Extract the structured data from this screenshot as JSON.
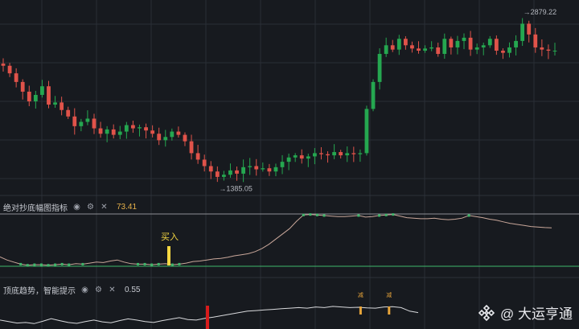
{
  "chart_data": [
    {
      "type": "candlestick",
      "title": "",
      "ylim": [
        1300,
        3000
      ],
      "grid": true,
      "annotations": [
        {
          "label": "→2879.22",
          "value": 2879.22,
          "kind": "high"
        },
        {
          "label": "→1385.05",
          "value": 1385.05,
          "kind": "low"
        }
      ],
      "close_path": [
        2450,
        2380,
        2300,
        2210,
        2120,
        2180,
        2260,
        2090,
        2110,
        2040,
        1980,
        1890,
        1930,
        1960,
        1870,
        1820,
        1860,
        1810,
        1840,
        1900,
        1870,
        1880,
        1850,
        1820,
        1760,
        1790,
        1840,
        1810,
        1750,
        1640,
        1580,
        1520,
        1470,
        1420,
        1440,
        1480,
        1450,
        1510,
        1520,
        1490,
        1500,
        1470,
        1510,
        1560,
        1600,
        1620,
        1590,
        1610,
        1640,
        1630,
        1620,
        1650,
        1620,
        1640,
        1630,
        1640,
        2050,
        2300,
        2560,
        2640,
        2600,
        2700,
        2640,
        2610,
        2590,
        2610,
        2620,
        2560,
        2700,
        2620,
        2680,
        2710,
        2600,
        2620,
        2640,
        2700,
        2590,
        2570,
        2620,
        2680,
        2840,
        2740,
        2620,
        2600,
        2590,
        2590
      ]
    },
    {
      "type": "line",
      "title": "绝对抄底幅图指标",
      "value_label": "73.41",
      "ylim": [
        0,
        100
      ],
      "series": [
        {
          "values": [
            18,
            12,
            8,
            4,
            2,
            3,
            3,
            2,
            3,
            4,
            3,
            5,
            4,
            6,
            8,
            7,
            10,
            12,
            8,
            5,
            4,
            4,
            3,
            4,
            5,
            3,
            4,
            6,
            9,
            10,
            12,
            14,
            15,
            17,
            20,
            22,
            24,
            28,
            34,
            42,
            52,
            62,
            72,
            86,
            98,
            99,
            98,
            97,
            96,
            95,
            95,
            96,
            97,
            94,
            95,
            97,
            98,
            99,
            96,
            93,
            92,
            91,
            91,
            92,
            90,
            89,
            90,
            92,
            97,
            95,
            93,
            90,
            88,
            85,
            82,
            80,
            78,
            76,
            75,
            74,
            73.41
          ]
        }
      ],
      "markers": [
        {
          "label": "买入",
          "index": 35
        }
      ],
      "reference_lines": [
        100,
        0
      ]
    },
    {
      "type": "line",
      "title": "顶底趋势，智能提示",
      "value_label": "0.55",
      "ylim": [
        0,
        1
      ],
      "series": [
        {
          "values": [
            0.3,
            0.25,
            0.2,
            0.22,
            0.18,
            0.26,
            0.35,
            0.28,
            0.22,
            0.19,
            0.25,
            0.3,
            0.24,
            0.21,
            0.28,
            0.34,
            0.3,
            0.25,
            0.22,
            0.28,
            0.33,
            0.38,
            0.32,
            0.3,
            0.36,
            0.4,
            0.45,
            0.5,
            0.55,
            0.6,
            0.62,
            0.64,
            0.66,
            0.68,
            0.7,
            0.72,
            0.7,
            0.74,
            0.72,
            0.76,
            0.74,
            0.72,
            0.73,
            0.71,
            0.7,
            0.74,
            0.75,
            0.72,
            0.6,
            0.55
          ]
        }
      ],
      "markers": [
        {
          "label": "减",
          "index": 38
        },
        {
          "label": "减",
          "index": 41
        }
      ]
    }
  ],
  "panes": {
    "p2_title": "绝对抄底幅图指标",
    "p2_value": "73.41",
    "p3_title": "顶底趋势，智能提示",
    "p3_value": "0.55"
  },
  "icons": {
    "eye": "eye-icon",
    "settings": "gear-icon",
    "close": "close-icon"
  },
  "colors": {
    "up": "#25a750",
    "down": "#e0534a",
    "background": "#171a1f",
    "grid": "#2a2e35",
    "signal": "#f5d742",
    "line": "#c9a79a",
    "ref": "#3fb86b"
  },
  "watermark": {
    "text": "@ 大运亨通"
  }
}
